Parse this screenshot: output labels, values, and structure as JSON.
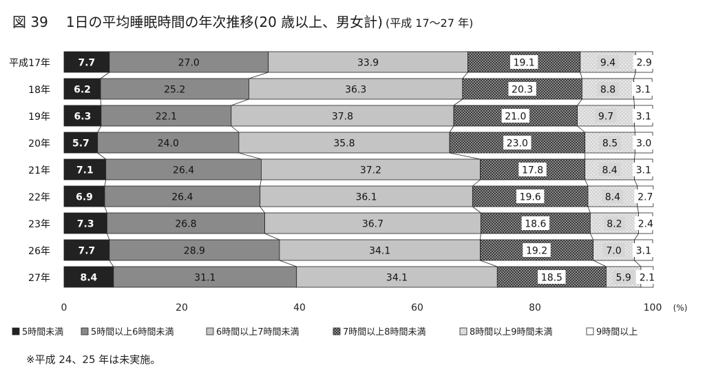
{
  "figure_number": "図 39",
  "title_main": "1日の平均睡眠時間の年次推移(20 歳以上、男女計)",
  "title_sub": "(平成 17〜27 年)",
  "note": "※平成 24、25 年は未実施。",
  "chart_data": {
    "type": "bar",
    "orientation": "horizontal",
    "stacked": true,
    "categories": [
      "平成17年",
      "18年",
      "19年",
      "20年",
      "21年",
      "22年",
      "23年",
      "26年",
      "27年"
    ],
    "series": [
      {
        "name": "5時間未満",
        "values": [
          7.7,
          6.2,
          6.3,
          5.7,
          7.1,
          6.9,
          7.3,
          7.7,
          8.4
        ],
        "fill": "#222222",
        "label_color": "#ffffff"
      },
      {
        "name": "5時間以上6時間未満",
        "values": [
          27.0,
          25.2,
          22.1,
          24.0,
          26.4,
          26.4,
          26.8,
          28.9,
          31.1
        ],
        "fill": "#8a8a8a",
        "label_color": "#111111"
      },
      {
        "name": "6時間以上7時間未満",
        "values": [
          33.9,
          36.3,
          37.8,
          35.8,
          37.2,
          36.1,
          36.7,
          34.1,
          34.1
        ],
        "fill": "#c4c4c4",
        "label_color": "#111111"
      },
      {
        "name": "7時間以上8時間未満",
        "values": [
          19.1,
          20.3,
          21.0,
          23.0,
          17.8,
          19.6,
          18.6,
          19.2,
          18.5
        ],
        "fill": "pattern-dark",
        "label_color": "#111111"
      },
      {
        "name": "8時間以上9時間未満",
        "values": [
          9.4,
          8.8,
          9.7,
          8.5,
          8.4,
          8.4,
          8.2,
          7.0,
          5.9
        ],
        "fill": "pattern-light",
        "label_color": "#111111"
      },
      {
        "name": "9時間以上",
        "values": [
          2.9,
          3.1,
          3.1,
          3.0,
          3.1,
          2.7,
          2.4,
          3.1,
          2.1
        ],
        "fill": "#ffffff",
        "label_color": "#111111"
      }
    ],
    "xlim": [
      0,
      100
    ],
    "xticks": [
      0,
      20,
      40,
      60,
      80,
      100
    ],
    "x_unit": "(%)",
    "legend_position": "bottom",
    "grid": false
  }
}
